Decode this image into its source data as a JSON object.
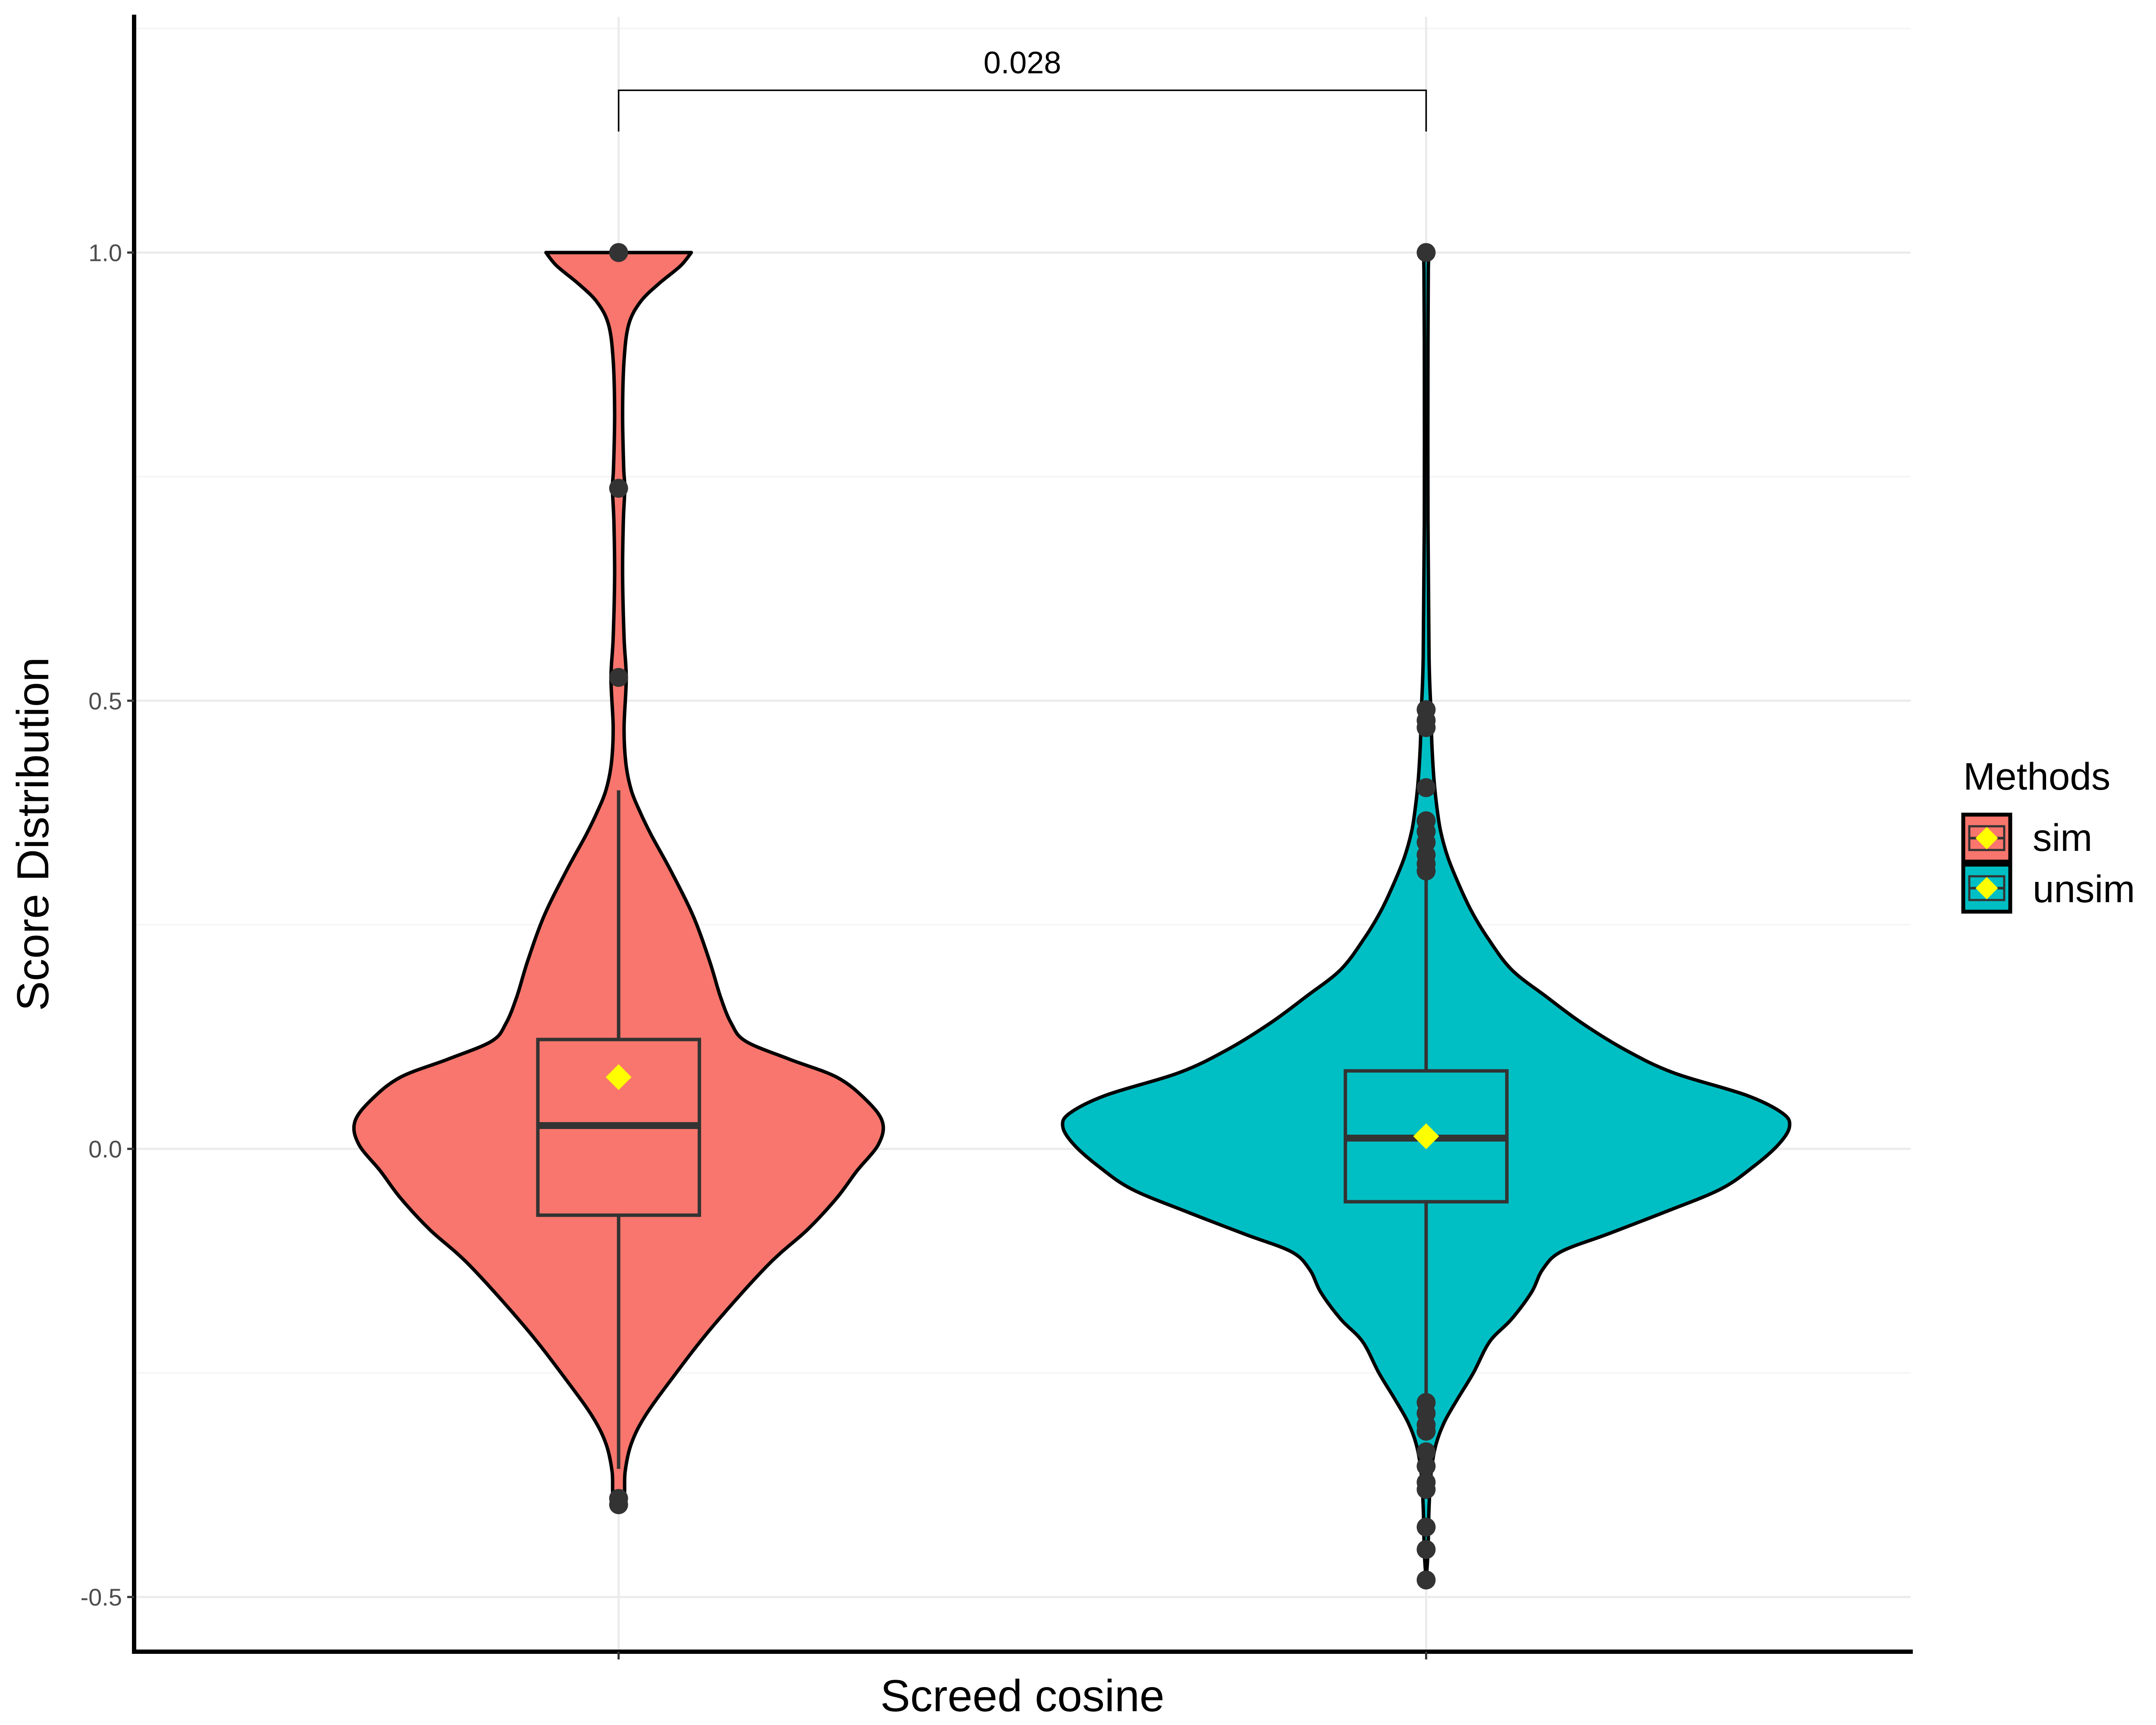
{
  "chart_data": {
    "type": "violin",
    "xlabel": "Screed cosine",
    "ylabel": "Score Distribution",
    "ylim": [
      -0.561,
      1.263
    ],
    "yticks": [
      {
        "value": -0.5,
        "label": "-0.5"
      },
      {
        "value": 0.0,
        "label": "0.0"
      },
      {
        "value": 0.5,
        "label": "0.5"
      },
      {
        "value": 1.0,
        "label": "1.0"
      }
    ],
    "minor_yticks": [
      -0.25,
      0.25,
      0.75,
      1.25
    ],
    "grid": true,
    "legend": {
      "title": "Methods",
      "position": "right"
    },
    "series": [
      {
        "name": "sim",
        "color": "#F8766D",
        "box": {
          "whisker_low": -0.357,
          "q1": -0.074,
          "median": 0.026,
          "q3": 0.122,
          "whisker_high": 0.4
        },
        "mean": 0.08,
        "outliers": [
          1.0,
          0.737,
          0.526,
          -0.39,
          -0.397
        ],
        "scaled_density": [
          [
            1.0,
            0.2
          ],
          [
            0.985,
            0.17
          ],
          [
            0.965,
            0.11
          ],
          [
            0.945,
            0.06
          ],
          [
            0.92,
            0.028
          ],
          [
            0.88,
            0.015
          ],
          [
            0.82,
            0.011
          ],
          [
            0.76,
            0.014
          ],
          [
            0.737,
            0.017
          ],
          [
            0.7,
            0.013
          ],
          [
            0.64,
            0.011
          ],
          [
            0.57,
            0.015
          ],
          [
            0.525,
            0.021
          ],
          [
            0.47,
            0.015
          ],
          [
            0.43,
            0.02
          ],
          [
            0.4,
            0.035
          ],
          [
            0.375,
            0.06
          ],
          [
            0.35,
            0.09
          ],
          [
            0.31,
            0.144
          ],
          [
            0.26,
            0.205
          ],
          [
            0.21,
            0.25
          ],
          [
            0.17,
            0.28
          ],
          [
            0.14,
            0.31
          ],
          [
            0.12,
            0.35
          ],
          [
            0.1,
            0.47
          ],
          [
            0.08,
            0.6
          ],
          [
            0.055,
            0.68
          ],
          [
            0.03,
            0.726
          ],
          [
            0.005,
            0.715
          ],
          [
            -0.025,
            0.655
          ],
          [
            -0.055,
            0.6
          ],
          [
            -0.09,
            0.52
          ],
          [
            -0.13,
            0.41
          ],
          [
            -0.2,
            0.255
          ],
          [
            -0.26,
            0.14
          ],
          [
            -0.3,
            0.07
          ],
          [
            -0.33,
            0.034
          ],
          [
            -0.36,
            0.018
          ],
          [
            -0.385,
            0.016
          ],
          [
            -0.397,
            0.008
          ],
          [
            -0.4,
            0.0
          ]
        ]
      },
      {
        "name": "unsim",
        "color": "#00BFC4",
        "box": {
          "whisker_low": -0.275,
          "q1": -0.059,
          "median": 0.012,
          "q3": 0.087,
          "whisker_high": 0.3
        },
        "mean": 0.014,
        "outliers": [
          1.0,
          0.49,
          0.478,
          0.47,
          0.403,
          0.366,
          0.354,
          0.342,
          0.328,
          0.318,
          0.31,
          -0.283,
          -0.295,
          -0.308,
          -0.315,
          -0.338,
          -0.354,
          -0.372,
          -0.38,
          -0.422,
          -0.447,
          -0.481
        ],
        "scaled_density": [
          [
            1.0,
            0.008
          ],
          [
            0.98,
            0.006
          ],
          [
            0.9,
            0.005
          ],
          [
            0.7,
            0.005
          ],
          [
            0.55,
            0.008
          ],
          [
            0.49,
            0.013
          ],
          [
            0.45,
            0.016
          ],
          [
            0.41,
            0.022
          ],
          [
            0.38,
            0.03
          ],
          [
            0.354,
            0.04
          ],
          [
            0.325,
            0.06
          ],
          [
            0.295,
            0.09
          ],
          [
            0.265,
            0.125
          ],
          [
            0.235,
            0.17
          ],
          [
            0.2,
            0.235
          ],
          [
            0.17,
            0.33
          ],
          [
            0.14,
            0.43
          ],
          [
            0.11,
            0.55
          ],
          [
            0.085,
            0.68
          ],
          [
            0.06,
            0.88
          ],
          [
            0.04,
            0.98
          ],
          [
            0.025,
            1.0
          ],
          [
            0.005,
            0.97
          ],
          [
            -0.02,
            0.9
          ],
          [
            -0.045,
            0.81
          ],
          [
            -0.07,
            0.66
          ],
          [
            -0.095,
            0.5
          ],
          [
            -0.115,
            0.37
          ],
          [
            -0.135,
            0.32
          ],
          [
            -0.16,
            0.29
          ],
          [
            -0.19,
            0.235
          ],
          [
            -0.215,
            0.175
          ],
          [
            -0.25,
            0.13
          ],
          [
            -0.28,
            0.085
          ],
          [
            -0.305,
            0.05
          ],
          [
            -0.33,
            0.027
          ],
          [
            -0.36,
            0.014
          ],
          [
            -0.4,
            0.008
          ],
          [
            -0.45,
            0.005
          ],
          [
            -0.481,
            0.0
          ]
        ]
      }
    ],
    "annotations": [
      {
        "type": "significance_bracket",
        "from": 1,
        "to": 2,
        "y": 1.181,
        "tip_y": 1.135,
        "label": "0.028"
      }
    ]
  },
  "colors": {
    "outline": "#000000",
    "box": "#333333",
    "points": "#333333",
    "mean_marker": "#FFFF00",
    "grid": "#EBEBEB",
    "grid_minor": "#F3F3F3",
    "axis": "#000000",
    "tick": "#333333"
  }
}
